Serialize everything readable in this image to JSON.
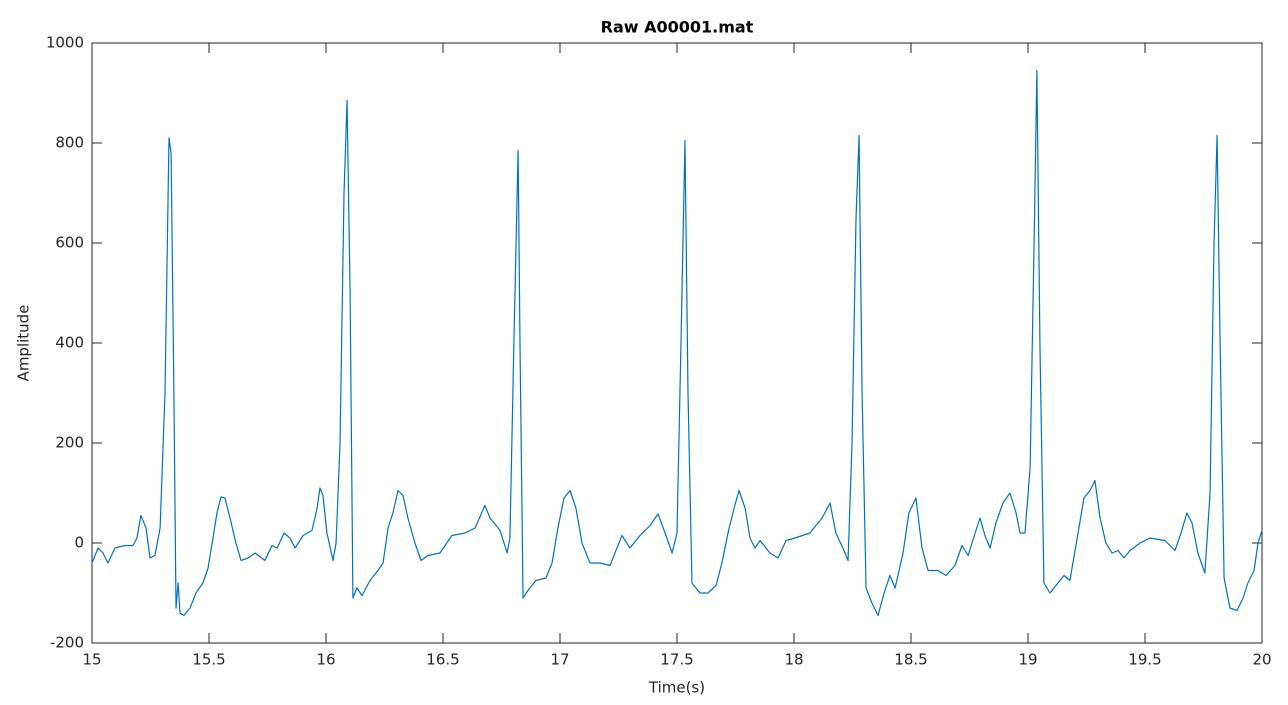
{
  "chart_data": {
    "type": "line",
    "title": "Raw A00001.mat",
    "x_label": "Time(s)",
    "y_label": "Amplitude",
    "xlim": [
      15,
      20
    ],
    "ylim": [
      -200,
      1000
    ],
    "xticks": [
      15,
      15.5,
      16,
      16.5,
      17,
      17.5,
      18,
      18.5,
      19,
      19.5,
      20
    ],
    "yticks": [
      -200,
      0,
      200,
      400,
      600,
      800,
      1000
    ],
    "x": [
      15,
      15.026,
      15.047,
      15.068,
      15.098,
      15.141,
      15.175,
      15.192,
      15.209,
      15.231,
      15.248,
      15.269,
      15.291,
      15.312,
      15.329,
      15.338,
      15.35,
      15.359,
      15.368,
      15.376,
      15.393,
      15.419,
      15.444,
      15.474,
      15.496,
      15.517,
      15.534,
      15.551,
      15.568,
      15.59,
      15.615,
      15.637,
      15.667,
      15.697,
      15.739,
      15.769,
      15.791,
      15.821,
      15.846,
      15.868,
      15.902,
      15.94,
      15.962,
      15.974,
      15.987,
      16.004,
      16.03,
      16.043,
      16.06,
      16.077,
      16.09,
      16.103,
      16.115,
      16.132,
      16.154,
      16.188,
      16.222,
      16.244,
      16.265,
      16.286,
      16.308,
      16.329,
      16.35,
      16.38,
      16.406,
      16.436,
      16.487,
      16.538,
      16.594,
      16.637,
      16.679,
      16.701,
      16.744,
      16.774,
      16.786,
      16.803,
      16.821,
      16.829,
      16.842,
      16.863,
      16.897,
      16.94,
      16.966,
      16.991,
      17.017,
      17.043,
      17.068,
      17.094,
      17.128,
      17.171,
      17.214,
      17.239,
      17.265,
      17.299,
      17.342,
      17.385,
      17.419,
      17.449,
      17.479,
      17.5,
      17.517,
      17.534,
      17.547,
      17.564,
      17.598,
      17.632,
      17.667,
      17.692,
      17.718,
      17.744,
      17.765,
      17.791,
      17.812,
      17.833,
      17.855,
      17.897,
      17.932,
      17.966,
      18.004,
      18.068,
      18.12,
      18.154,
      18.179,
      18.209,
      18.231,
      18.248,
      18.265,
      18.278,
      18.291,
      18.308,
      18.333,
      18.359,
      18.385,
      18.41,
      18.432,
      18.466,
      18.491,
      18.521,
      18.547,
      18.573,
      18.615,
      18.65,
      18.688,
      18.718,
      18.744,
      18.774,
      18.795,
      18.816,
      18.838,
      18.863,
      18.893,
      18.923,
      18.949,
      18.966,
      18.987,
      19.009,
      19.026,
      19.038,
      19.051,
      19.068,
      19.094,
      19.128,
      19.154,
      19.179,
      19.214,
      19.239,
      19.265,
      19.286,
      19.308,
      19.333,
      19.359,
      19.385,
      19.41,
      19.436,
      19.479,
      19.521,
      19.585,
      19.628,
      19.654,
      19.679,
      19.701,
      19.726,
      19.756,
      19.778,
      19.795,
      19.808,
      19.821,
      19.838,
      19.863,
      19.893,
      19.919,
      19.94,
      19.966,
      19.983,
      20
    ],
    "series": [
      {
        "color": "#0072bd",
        "values": [
          -40,
          -10,
          -20,
          -40,
          -10,
          -5,
          -5,
          10,
          55,
          30,
          -30,
          -25,
          30,
          300,
          810,
          780,
          300,
          -130,
          -80,
          -140,
          -145,
          -130,
          -100,
          -80,
          -50,
          10,
          60,
          92,
          90,
          50,
          0,
          -35,
          -30,
          -20,
          -35,
          -5,
          -10,
          20,
          10,
          -10,
          15,
          25,
          70,
          110,
          95,
          20,
          -35,
          0,
          200,
          700,
          885,
          500,
          -110,
          -90,
          -105,
          -75,
          -55,
          -40,
          30,
          60,
          105,
          95,
          50,
          0,
          -35,
          -25,
          -20,
          15,
          20,
          30,
          75,
          50,
          25,
          -20,
          10,
          400,
          785,
          400,
          -110,
          -95,
          -75,
          -70,
          -40,
          30,
          90,
          105,
          70,
          0,
          -40,
          -40,
          -45,
          -15,
          15,
          -10,
          15,
          35,
          58,
          20,
          -20,
          20,
          400,
          805,
          300,
          -80,
          -100,
          -100,
          -85,
          -40,
          20,
          70,
          105,
          70,
          10,
          -10,
          5,
          -20,
          -30,
          5,
          10,
          20,
          50,
          80,
          20,
          -10,
          -35,
          200,
          650,
          815,
          300,
          -90,
          -120,
          -145,
          -100,
          -65,
          -90,
          -20,
          60,
          90,
          -10,
          -55,
          -55,
          -65,
          -45,
          -5,
          -25,
          20,
          50,
          15,
          -10,
          40,
          80,
          100,
          60,
          20,
          20,
          150,
          600,
          945,
          400,
          -80,
          -100,
          -80,
          -65,
          -75,
          20,
          90,
          105,
          125,
          50,
          0,
          -20,
          -15,
          -30,
          -15,
          0,
          10,
          5,
          -15,
          20,
          60,
          40,
          -20,
          -60,
          100,
          600,
          815,
          400,
          -70,
          -130,
          -135,
          -110,
          -80,
          -55,
          0,
          25
        ]
      }
    ]
  }
}
